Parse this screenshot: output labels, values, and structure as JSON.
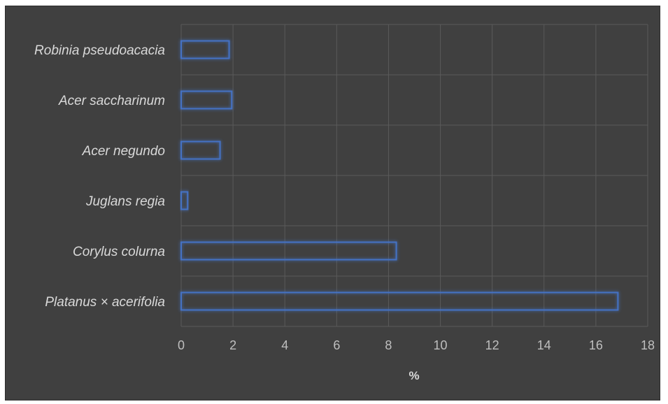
{
  "chart_data": {
    "type": "bar",
    "orientation": "horizontal",
    "categories": [
      "Robinia pseudoacacia",
      "Acer saccharinum",
      "Acer negundo",
      "Juglans regia",
      "Corylus colurna",
      "Platanus × acerifolia"
    ],
    "values": [
      1.85,
      1.95,
      1.5,
      0.25,
      8.3,
      16.85
    ],
    "title": "",
    "xlabel": "%",
    "ylabel": "",
    "xlim": [
      0,
      18
    ],
    "xticks": [
      "0",
      "2",
      "4",
      "6",
      "8",
      "10",
      "12",
      "14",
      "16",
      "18"
    ],
    "grid": true,
    "legend": "none",
    "colors": {
      "background": "#404040",
      "bar_outline": "#4472c4",
      "grid": "#5a5a5a",
      "text": "#d9d9d9"
    }
  }
}
